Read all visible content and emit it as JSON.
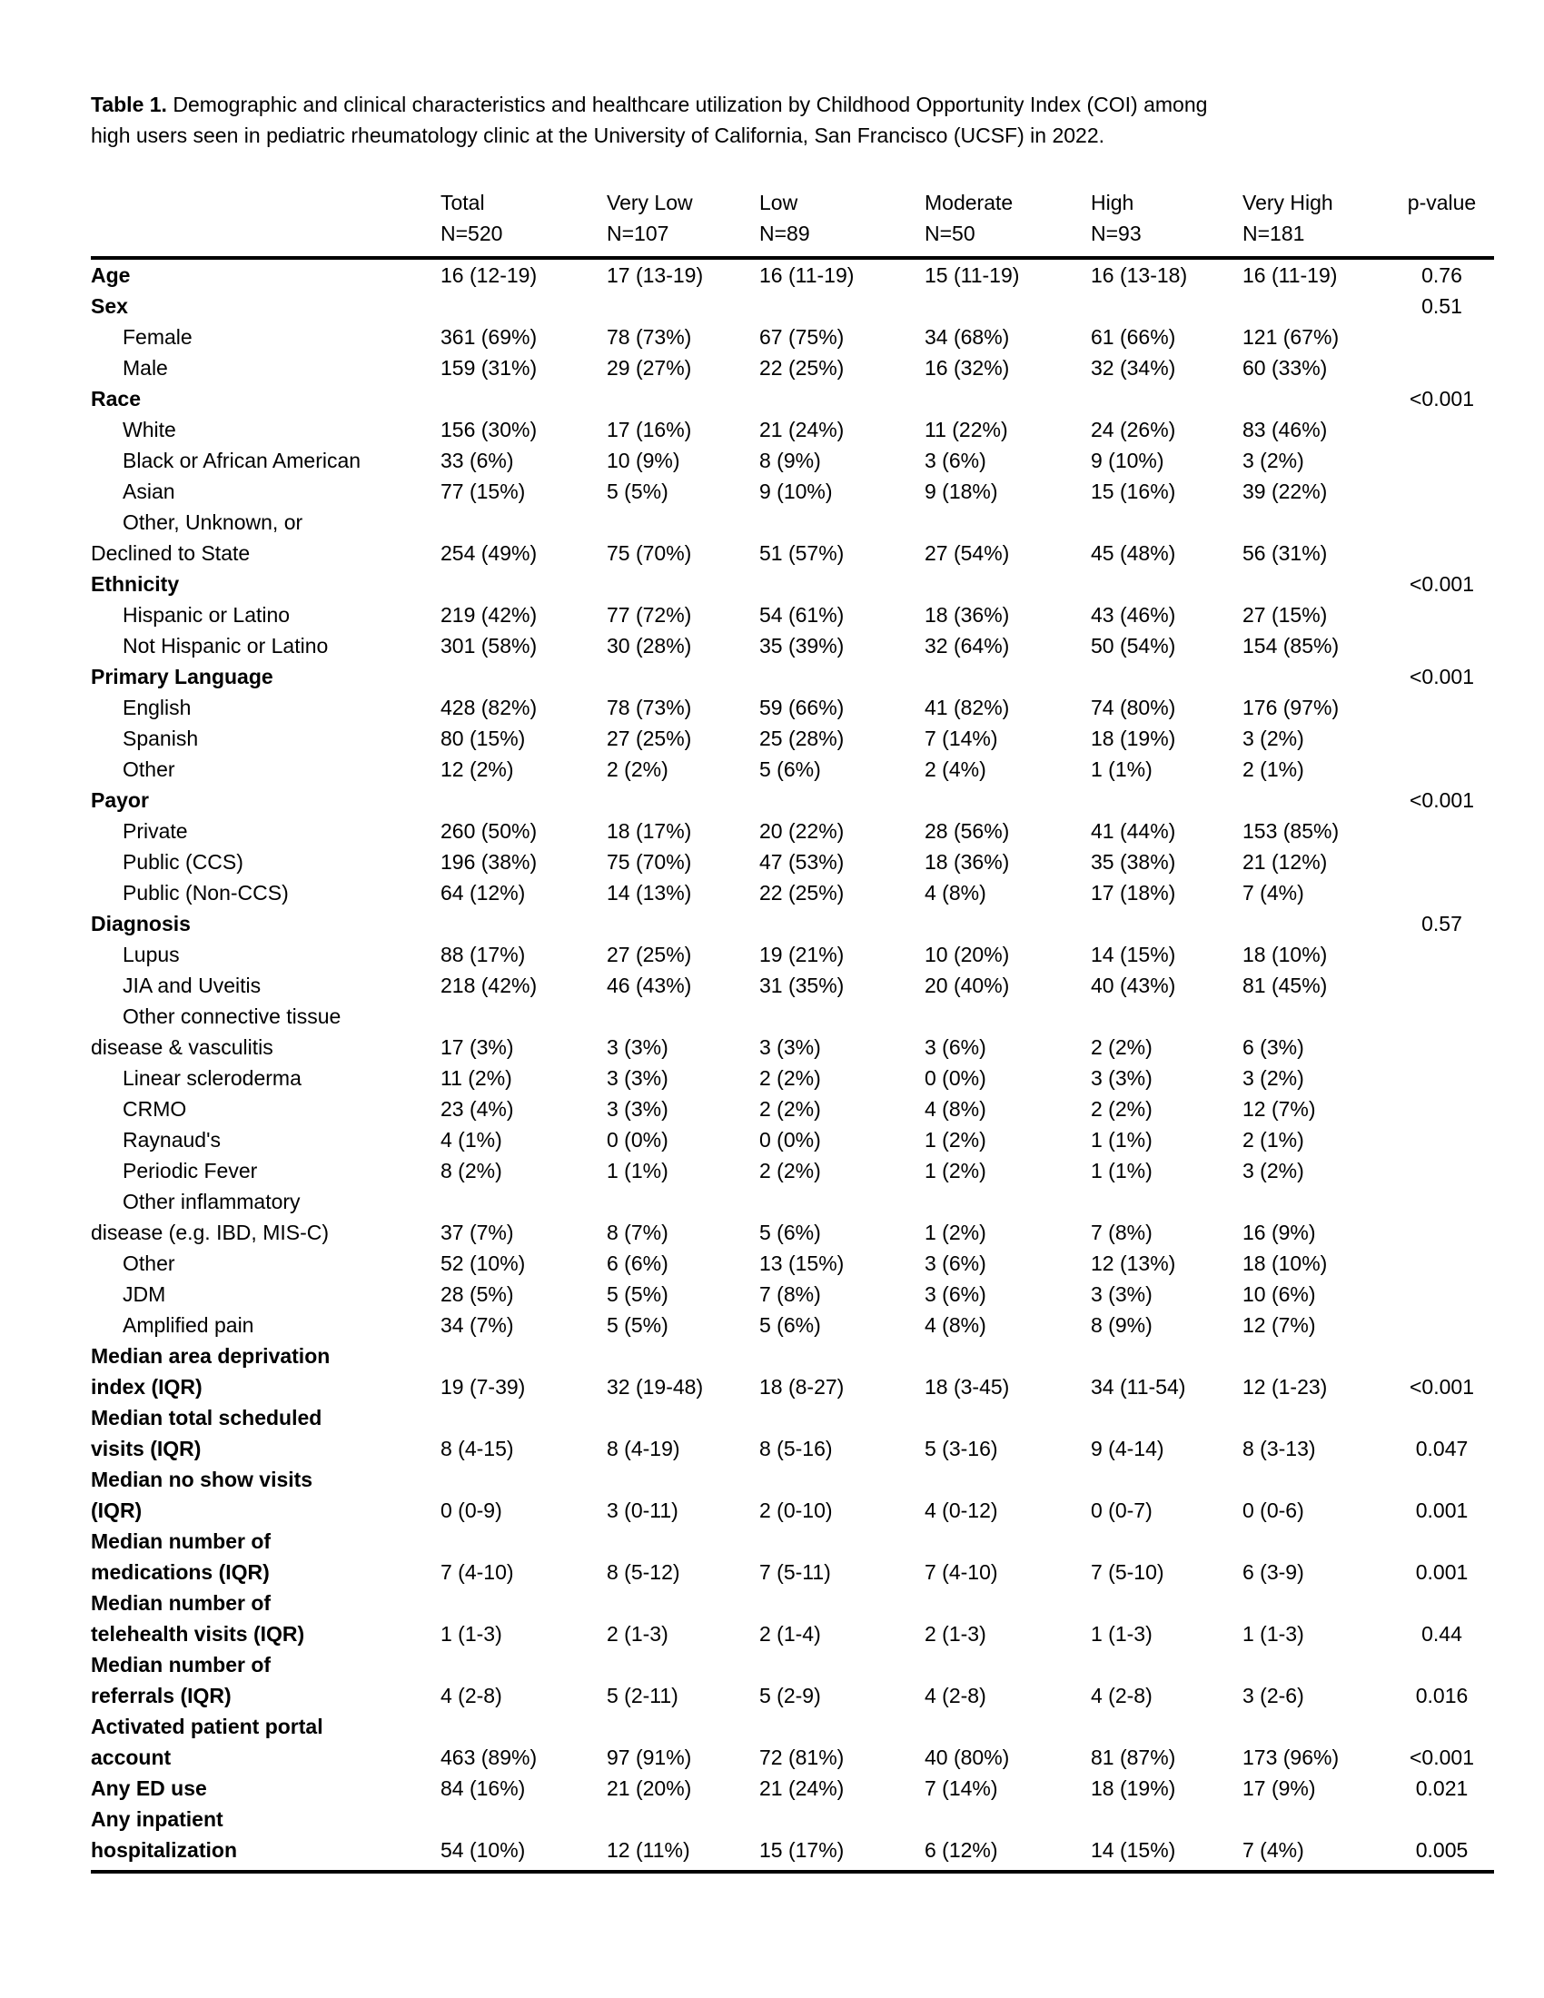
{
  "title": {
    "bold_label": "Table 1.",
    "line1_rest": " Demographic and clinical characteristics and healthcare utilization by Childhood Opportunity Index (COI) among",
    "line2": "high users seen in pediatric rheumatology clinic at the University of California, San Francisco (UCSF) in 2022."
  },
  "table": {
    "p_header": "p-value",
    "columns": [
      {
        "name": "Total",
        "n": "N=520"
      },
      {
        "name": "Very Low",
        "n": "N=107"
      },
      {
        "name": "Low",
        "n": "N=89"
      },
      {
        "name": "Moderate",
        "n": "N=50"
      },
      {
        "name": "High",
        "n": "N=93"
      },
      {
        "name": "Very High",
        "n": "N=181"
      }
    ],
    "rows": [
      {
        "label_lines": [
          "Age"
        ],
        "bold": true,
        "indent": false,
        "values": [
          "16 (12-19)",
          "17 (13-19)",
          "16 (11-19)",
          "15 (11-19)",
          "16 (13-18)",
          "16 (11-19)"
        ],
        "p": "0.76"
      },
      {
        "label_lines": [
          "Sex"
        ],
        "bold": true,
        "indent": false,
        "values": [
          "",
          "",
          "",
          "",
          "",
          ""
        ],
        "p": "0.51"
      },
      {
        "label_lines": [
          "Female"
        ],
        "bold": false,
        "indent": true,
        "values": [
          "361 (69%)",
          "78 (73%)",
          "67 (75%)",
          "34 (68%)",
          "61 (66%)",
          "121 (67%)"
        ],
        "p": ""
      },
      {
        "label_lines": [
          "Male"
        ],
        "bold": false,
        "indent": true,
        "values": [
          "159 (31%)",
          "29 (27%)",
          "22 (25%)",
          "16 (32%)",
          "32 (34%)",
          "60 (33%)"
        ],
        "p": ""
      },
      {
        "label_lines": [
          "Race"
        ],
        "bold": true,
        "indent": false,
        "values": [
          "",
          "",
          "",
          "",
          "",
          ""
        ],
        "p": "<0.001"
      },
      {
        "label_lines": [
          "White"
        ],
        "bold": false,
        "indent": true,
        "values": [
          "156 (30%)",
          "17 (16%)",
          "21 (24%)",
          "11 (22%)",
          "24 (26%)",
          "83 (46%)"
        ],
        "p": ""
      },
      {
        "label_lines": [
          "Black or African American"
        ],
        "bold": false,
        "indent": true,
        "values": [
          "33 (6%)",
          "10 (9%)",
          "8 (9%)",
          "3 (6%)",
          "9 (10%)",
          "3 (2%)"
        ],
        "p": ""
      },
      {
        "label_lines": [
          "Asian"
        ],
        "bold": false,
        "indent": true,
        "values": [
          "77 (15%)",
          "5 (5%)",
          "9 (10%)",
          "9 (18%)",
          "15 (16%)",
          "39 (22%)"
        ],
        "p": ""
      },
      {
        "label_lines": [
          "Other, Unknown, or",
          "Declined to State"
        ],
        "bold": false,
        "indent": true,
        "values": [
          "254 (49%)",
          "75 (70%)",
          "51 (57%)",
          "27 (54%)",
          "45 (48%)",
          "56 (31%)"
        ],
        "p": ""
      },
      {
        "label_lines": [
          "Ethnicity"
        ],
        "bold": true,
        "indent": false,
        "values": [
          "",
          "",
          "",
          "",
          "",
          ""
        ],
        "p": "<0.001"
      },
      {
        "label_lines": [
          "Hispanic or Latino"
        ],
        "bold": false,
        "indent": true,
        "values": [
          "219 (42%)",
          "77 (72%)",
          "54 (61%)",
          "18 (36%)",
          "43 (46%)",
          "27 (15%)"
        ],
        "p": ""
      },
      {
        "label_lines": [
          "Not Hispanic or Latino"
        ],
        "bold": false,
        "indent": true,
        "values": [
          "301 (58%)",
          "30 (28%)",
          "35 (39%)",
          "32 (64%)",
          "50 (54%)",
          "154 (85%)"
        ],
        "p": ""
      },
      {
        "label_lines": [
          "Primary Language"
        ],
        "bold": true,
        "indent": false,
        "values": [
          "",
          "",
          "",
          "",
          "",
          ""
        ],
        "p": "<0.001"
      },
      {
        "label_lines": [
          "English"
        ],
        "bold": false,
        "indent": true,
        "values": [
          "428 (82%)",
          "78 (73%)",
          "59 (66%)",
          "41 (82%)",
          "74 (80%)",
          "176 (97%)"
        ],
        "p": ""
      },
      {
        "label_lines": [
          "Spanish"
        ],
        "bold": false,
        "indent": true,
        "values": [
          "80 (15%)",
          "27 (25%)",
          "25 (28%)",
          "7 (14%)",
          "18 (19%)",
          "3 (2%)"
        ],
        "p": ""
      },
      {
        "label_lines": [
          "Other"
        ],
        "bold": false,
        "indent": true,
        "values": [
          "12 (2%)",
          "2 (2%)",
          "5 (6%)",
          "2 (4%)",
          "1 (1%)",
          "2 (1%)"
        ],
        "p": ""
      },
      {
        "label_lines": [
          "Payor"
        ],
        "bold": true,
        "indent": false,
        "values": [
          "",
          "",
          "",
          "",
          "",
          ""
        ],
        "p": "<0.001"
      },
      {
        "label_lines": [
          "Private"
        ],
        "bold": false,
        "indent": true,
        "values": [
          "260 (50%)",
          "18 (17%)",
          "20 (22%)",
          "28 (56%)",
          "41 (44%)",
          "153 (85%)"
        ],
        "p": ""
      },
      {
        "label_lines": [
          "Public (CCS)"
        ],
        "bold": false,
        "indent": true,
        "values": [
          "196 (38%)",
          "75 (70%)",
          "47 (53%)",
          "18 (36%)",
          "35 (38%)",
          "21 (12%)"
        ],
        "p": ""
      },
      {
        "label_lines": [
          "Public (Non-CCS)"
        ],
        "bold": false,
        "indent": true,
        "values": [
          "64 (12%)",
          "14 (13%)",
          "22 (25%)",
          "4 (8%)",
          "17 (18%)",
          "7 (4%)"
        ],
        "p": ""
      },
      {
        "label_lines": [
          "Diagnosis"
        ],
        "bold": true,
        "indent": false,
        "values": [
          "",
          "",
          "",
          "",
          "",
          ""
        ],
        "p": "0.57"
      },
      {
        "label_lines": [
          "Lupus"
        ],
        "bold": false,
        "indent": true,
        "values": [
          "88 (17%)",
          "27 (25%)",
          "19 (21%)",
          "10 (20%)",
          "14 (15%)",
          "18 (10%)"
        ],
        "p": ""
      },
      {
        "label_lines": [
          "JIA and Uveitis"
        ],
        "bold": false,
        "indent": true,
        "values": [
          "218 (42%)",
          "46 (43%)",
          "31 (35%)",
          "20 (40%)",
          "40 (43%)",
          "81 (45%)"
        ],
        "p": ""
      },
      {
        "label_lines": [
          "Other connective tissue",
          "disease & vasculitis"
        ],
        "bold": false,
        "indent": true,
        "values": [
          "17 (3%)",
          "3 (3%)",
          "3 (3%)",
          "3 (6%)",
          "2 (2%)",
          "6 (3%)"
        ],
        "p": ""
      },
      {
        "label_lines": [
          "Linear scleroderma"
        ],
        "bold": false,
        "indent": true,
        "values": [
          "11 (2%)",
          "3 (3%)",
          "2 (2%)",
          "0 (0%)",
          "3 (3%)",
          "3 (2%)"
        ],
        "p": ""
      },
      {
        "label_lines": [
          "CRMO"
        ],
        "bold": false,
        "indent": true,
        "values": [
          "23 (4%)",
          "3 (3%)",
          "2 (2%)",
          "4 (8%)",
          "2 (2%)",
          "12 (7%)"
        ],
        "p": ""
      },
      {
        "label_lines": [
          "Raynaud's"
        ],
        "bold": false,
        "indent": true,
        "values": [
          "4 (1%)",
          "0 (0%)",
          "0 (0%)",
          "1 (2%)",
          "1 (1%)",
          "2 (1%)"
        ],
        "p": ""
      },
      {
        "label_lines": [
          "Periodic Fever"
        ],
        "bold": false,
        "indent": true,
        "values": [
          "8 (2%)",
          "1 (1%)",
          "2 (2%)",
          "1 (2%)",
          "1 (1%)",
          "3 (2%)"
        ],
        "p": ""
      },
      {
        "label_lines": [
          "Other inflammatory",
          "disease (e.g. IBD, MIS-C)"
        ],
        "bold": false,
        "indent": true,
        "values": [
          "37 (7%)",
          "8 (7%)",
          "5 (6%)",
          "1 (2%)",
          "7 (8%)",
          "16 (9%)"
        ],
        "p": ""
      },
      {
        "label_lines": [
          "Other"
        ],
        "bold": false,
        "indent": true,
        "values": [
          "52 (10%)",
          "6 (6%)",
          "13 (15%)",
          "3 (6%)",
          "12 (13%)",
          "18 (10%)"
        ],
        "p": ""
      },
      {
        "label_lines": [
          "JDM"
        ],
        "bold": false,
        "indent": true,
        "values": [
          "28 (5%)",
          "5 (5%)",
          "7 (8%)",
          "3 (6%)",
          "3 (3%)",
          "10 (6%)"
        ],
        "p": ""
      },
      {
        "label_lines": [
          "Amplified pain"
        ],
        "bold": false,
        "indent": true,
        "values": [
          "34 (7%)",
          "5 (5%)",
          "5 (6%)",
          "4 (8%)",
          "8 (9%)",
          "12 (7%)"
        ],
        "p": ""
      },
      {
        "label_lines": [
          "Median area deprivation",
          "index (IQR)"
        ],
        "bold": true,
        "indent": false,
        "values": [
          "19 (7-39)",
          "32 (19-48)",
          "18 (8-27)",
          "18 (3-45)",
          "34 (11-54)",
          "12 (1-23)"
        ],
        "p": "<0.001"
      },
      {
        "label_lines": [
          "Median total scheduled",
          "visits (IQR)"
        ],
        "bold": true,
        "indent": false,
        "values": [
          "8 (4-15)",
          "8 (4-19)",
          "8 (5-16)",
          "5 (3-16)",
          "9 (4-14)",
          "8 (3-13)"
        ],
        "p": "0.047"
      },
      {
        "label_lines": [
          "Median no show visits",
          "(IQR)"
        ],
        "bold": true,
        "indent": false,
        "values": [
          "0 (0-9)",
          "3 (0-11)",
          "2 (0-10)",
          "4 (0-12)",
          "0 (0-7)",
          "0 (0-6)"
        ],
        "p": "0.001"
      },
      {
        "label_lines": [
          "Median number of",
          "medications (IQR)"
        ],
        "bold": true,
        "indent": false,
        "values": [
          "7 (4-10)",
          "8 (5-12)",
          "7 (5-11)",
          "7 (4-10)",
          "7 (5-10)",
          "6 (3-9)"
        ],
        "p": "0.001"
      },
      {
        "label_lines": [
          "Median number of",
          "telehealth visits (IQR)"
        ],
        "bold": true,
        "indent": false,
        "values": [
          "1 (1-3)",
          "2 (1-3)",
          "2 (1-4)",
          "2 (1-3)",
          "1 (1-3)",
          "1 (1-3)"
        ],
        "p": "0.44"
      },
      {
        "label_lines": [
          "Median number of",
          "referrals (IQR)"
        ],
        "bold": true,
        "indent": false,
        "values": [
          "4 (2-8)",
          "5 (2-11)",
          "5 (2-9)",
          "4 (2-8)",
          "4 (2-8)",
          "3 (2-6)"
        ],
        "p": "0.016"
      },
      {
        "label_lines": [
          "Activated patient portal",
          "account"
        ],
        "bold": true,
        "indent": false,
        "values": [
          "463 (89%)",
          "97 (91%)",
          "72 (81%)",
          "40 (80%)",
          "81 (87%)",
          "173 (96%)"
        ],
        "p": "<0.001"
      },
      {
        "label_lines": [
          "Any ED use"
        ],
        "bold": true,
        "indent": false,
        "values": [
          "84 (16%)",
          "21 (20%)",
          "21 (24%)",
          "7 (14%)",
          "18 (19%)",
          "17 (9%)"
        ],
        "p": "0.021"
      },
      {
        "label_lines": [
          "Any inpatient",
          "hospitalization"
        ],
        "bold": true,
        "indent": false,
        "values": [
          "54 (10%)",
          "12 (11%)",
          "15 (17%)",
          "6 (12%)",
          "14 (15%)",
          "7 (4%)"
        ],
        "p": "0.005"
      }
    ]
  }
}
